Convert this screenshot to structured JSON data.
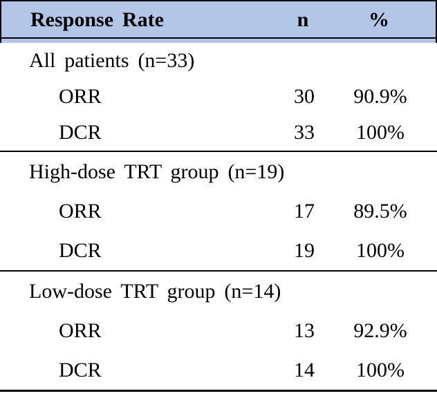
{
  "colors": {
    "header_bg": "#b4c6e7",
    "border": "#000000",
    "text": "#000000",
    "page_bg": "#ffffff"
  },
  "table": {
    "header": {
      "response_rate": "Response Rate",
      "n": "n",
      "percent": "%"
    },
    "sections": [
      {
        "group_label": "All patients (n=33)",
        "rows": [
          {
            "label": "ORR",
            "n": "30",
            "percent": "90.9%"
          },
          {
            "label": "DCR",
            "n": "33",
            "percent": "100%"
          }
        ]
      },
      {
        "group_label": "High-dose TRT group (n=19)",
        "rows": [
          {
            "label": "ORR",
            "n": "17",
            "percent": "89.5%"
          },
          {
            "label": "DCR",
            "n": "19",
            "percent": "100%"
          }
        ]
      },
      {
        "group_label": "Low-dose TRT group (n=14)",
        "rows": [
          {
            "label": "ORR",
            "n": "13",
            "percent": "92.9%"
          },
          {
            "label": "DCR",
            "n": "14",
            "percent": "100%"
          }
        ]
      }
    ]
  },
  "chart_data": {
    "type": "table",
    "title": "Response Rate",
    "columns": [
      "Response Rate",
      "n",
      "%"
    ],
    "rows": [
      [
        "All patients (n=33)",
        "",
        ""
      ],
      [
        "ORR",
        "30",
        "90.9%"
      ],
      [
        "DCR",
        "33",
        "100%"
      ],
      [
        "High-dose TRT group (n=19)",
        "",
        ""
      ],
      [
        "ORR",
        "17",
        "89.5%"
      ],
      [
        "DCR",
        "19",
        "100%"
      ],
      [
        "Low-dose TRT group (n=14)",
        "",
        ""
      ],
      [
        "ORR",
        "13",
        "92.9%"
      ],
      [
        "DCR",
        "14",
        "100%"
      ]
    ]
  }
}
